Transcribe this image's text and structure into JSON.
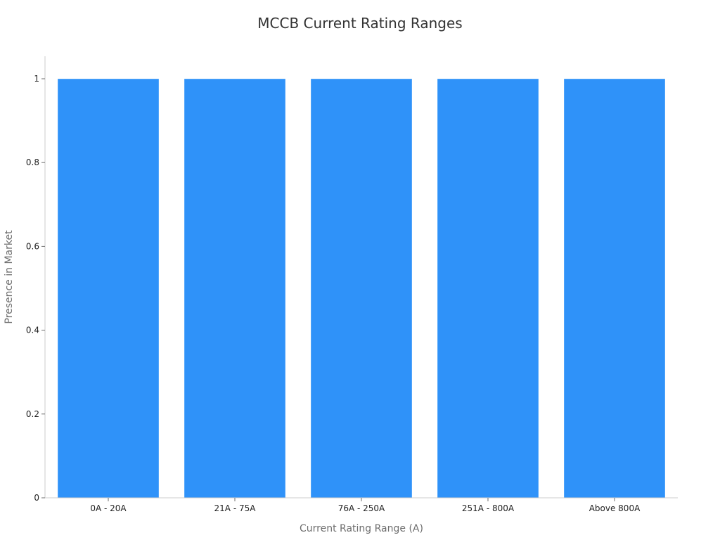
{
  "chart_data": {
    "type": "bar",
    "title": "MCCB Current Rating Ranges",
    "xlabel": "Current Rating Range (A)",
    "ylabel": "Presence in Market",
    "categories": [
      "0A - 20A",
      "21A - 75A",
      "76A - 250A",
      "251A - 800A",
      "Above 800A"
    ],
    "values": [
      1,
      1,
      1,
      1,
      1
    ],
    "ylim": [
      0,
      1.05
    ],
    "yticks": [
      0,
      0.2,
      0.4,
      0.6,
      0.8,
      1
    ],
    "ytick_labels": [
      "0",
      "0.2",
      "0.4",
      "0.6",
      "0.8",
      "1"
    ],
    "grid": false,
    "legend": "none",
    "bar_color": "#2f92f9"
  }
}
